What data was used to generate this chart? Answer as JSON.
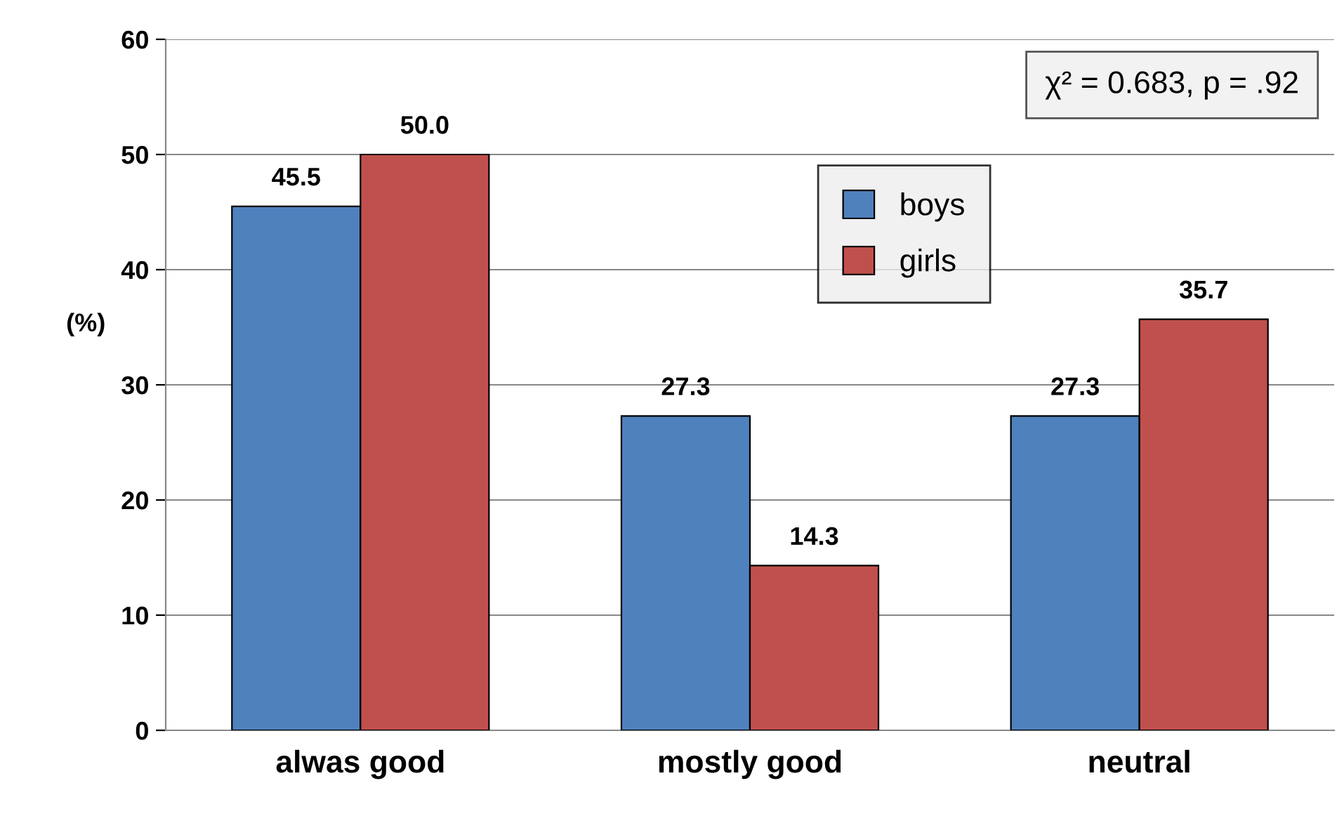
{
  "chart_data": {
    "type": "bar",
    "categories": [
      "alwas good",
      "mostly good",
      "neutral"
    ],
    "series": [
      {
        "name": "boys",
        "color": "#4f81bd",
        "values": [
          45.5,
          27.3,
          27.3
        ],
        "value_labels": [
          "45.5",
          "27.3",
          "27.3"
        ]
      },
      {
        "name": "girls",
        "color": "#c0504d",
        "values": [
          50.0,
          14.3,
          35.7
        ],
        "value_labels": [
          "50.0",
          "14.3",
          "35.7"
        ]
      }
    ],
    "ylabel": "(%)",
    "ylim": [
      0,
      60
    ],
    "yticks": [
      0,
      10,
      20,
      30,
      40,
      50,
      60
    ],
    "grid": "y",
    "legend": "top right",
    "annotations": [
      "χ² = 0.683, p = .92"
    ]
  }
}
